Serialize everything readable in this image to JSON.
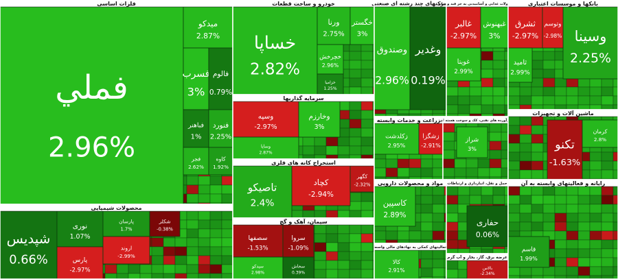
{
  "chart_data": {
    "type": "treemap",
    "groups": [
      {
        "name": "فلزات اساسی",
        "names": [
          "فملي",
          "میدکو",
          "فسرب",
          "فالوم",
          "فباهنر",
          "فنورد",
          "فجر",
          "کاوه"
        ],
        "values": [
          2.96,
          2.87,
          3,
          0.79,
          1,
          2.25,
          2.62,
          1.92
        ],
        "value_labels": [
          "2.96%",
          "2.87%",
          "3%",
          "0.79%",
          "1%",
          "2.25%",
          "2.62%",
          "1.92%"
        ]
      },
      {
        "name": "محصولات شیمیایی",
        "names": [
          "شپدیس",
          "نوری",
          "پارس",
          "پارسان",
          "اروند",
          "شکلر"
        ],
        "values": [
          0.66,
          1.07,
          -2.97,
          1.7,
          -2.99,
          -0.38
        ],
        "value_labels": [
          "0.66%",
          "1.07%",
          "-2.97%",
          "1.7%",
          "-2.99%",
          "-0.38%"
        ]
      },
      {
        "name": "خودرو و ساخت قطعات",
        "names": [
          "خساپا",
          "ورنا",
          "خگستر",
          "خچرخش",
          "خزامیا"
        ],
        "values": [
          2.82,
          2.75,
          3,
          2.96,
          1.25
        ],
        "value_labels": [
          "2.82%",
          "2.75%",
          "3%",
          "2.96%",
          "1.25%"
        ]
      },
      {
        "name": "سرمایه گذاریها",
        "names": [
          "وسپه",
          "وخارزم",
          "وسایا"
        ],
        "values": [
          -2.97,
          3,
          2.87
        ],
        "value_labels": [
          "-2.97%",
          "3%",
          "2.87%"
        ]
      },
      {
        "name": "استخراج کانه های فلزی",
        "names": [
          "تاصیکو",
          "کچاد",
          "کگهر"
        ],
        "values": [
          2.4,
          -2.94,
          -2.32
        ],
        "value_labels": [
          "2.4%",
          "-2.94%",
          "-2.32%"
        ]
      },
      {
        "name": "سیمان، آهک و گچ",
        "names": [
          "سصفها",
          "سروا",
          "سیدکو",
          "سخاش"
        ],
        "values": [
          -1.53,
          -1.09,
          2.98,
          0.39
        ],
        "value_labels": [
          "-1.53%",
          "-1.09%",
          "2.98%",
          "0.39%"
        ]
      },
      {
        "name": "شرکتهای چند رشته ای صنعتی",
        "names": [
          "وصندوق",
          "وغدیر"
        ],
        "values": [
          2.96,
          0.19
        ],
        "value_labels": [
          "2.96%",
          "0.19%"
        ]
      },
      {
        "name": "محصولات غذایی و آشامیدنی به جز قند و شکر",
        "names": [
          "غالبر",
          "غبهنوش",
          "غویتا"
        ],
        "values": [
          -2.97,
          3,
          2.99
        ],
        "value_labels": [
          "-2.97%",
          "3%",
          "2.99%"
        ]
      },
      {
        "name": "بانکها و موسسات اعتباری",
        "names": [
          "وسینا",
          "ثشرق",
          "وتوسم",
          "ثامید"
        ],
        "values": [
          2.25,
          -2.97,
          -2.98,
          2.99
        ],
        "value_labels": [
          "2.25%",
          "-2.97%",
          "-2.98%",
          "2.99%"
        ]
      },
      {
        "name": "زراعت و خدمات وابسته",
        "names": [
          "زکلدشت",
          "زشگزا"
        ],
        "values": [
          2.95,
          -2.91
        ],
        "value_labels": [
          "2.95%",
          "-2.91%"
        ]
      },
      {
        "name": "فرآورده های نفتی، کک و سوخت هسته ای",
        "names": [
          "شراز"
        ],
        "values": [
          3
        ],
        "value_labels": [
          "3%"
        ]
      },
      {
        "name": "ماشین آلات و تجهیزات",
        "names": [
          "تکنو",
          "کرمان"
        ],
        "values": [
          -1.63,
          2.8
        ],
        "value_labels": [
          "-1.63%",
          "2.8%"
        ]
      },
      {
        "name": "مواد و محصولات دارویی",
        "names": [
          "کاسپین"
        ],
        "values": [
          2.89
        ],
        "value_labels": [
          "2.89%"
        ]
      },
      {
        "name": "حمل و نقل، انبارداری و ارتباطات",
        "names": [
          "حفاری"
        ],
        "values": [
          0.06
        ],
        "value_labels": [
          "0.06%"
        ]
      },
      {
        "name": "فعالیتهای کمکی به نهادهای مالی واسط",
        "names": [
          "کالا"
        ],
        "values": [
          2.91
        ],
        "value_labels": [
          "2.91%"
        ]
      },
      {
        "name": "عرضه برق، گاز، بخار و آب گرم",
        "names": [
          "بالاس"
        ],
        "values": [
          -2.34
        ],
        "value_labels": [
          "-2.34%"
        ]
      },
      {
        "name": "رایانه و فعالیتهای وابسته به آن",
        "names": [
          "قاسم"
        ],
        "values": [
          1.99
        ],
        "value_labels": [
          "1.99%"
        ]
      }
    ]
  }
}
